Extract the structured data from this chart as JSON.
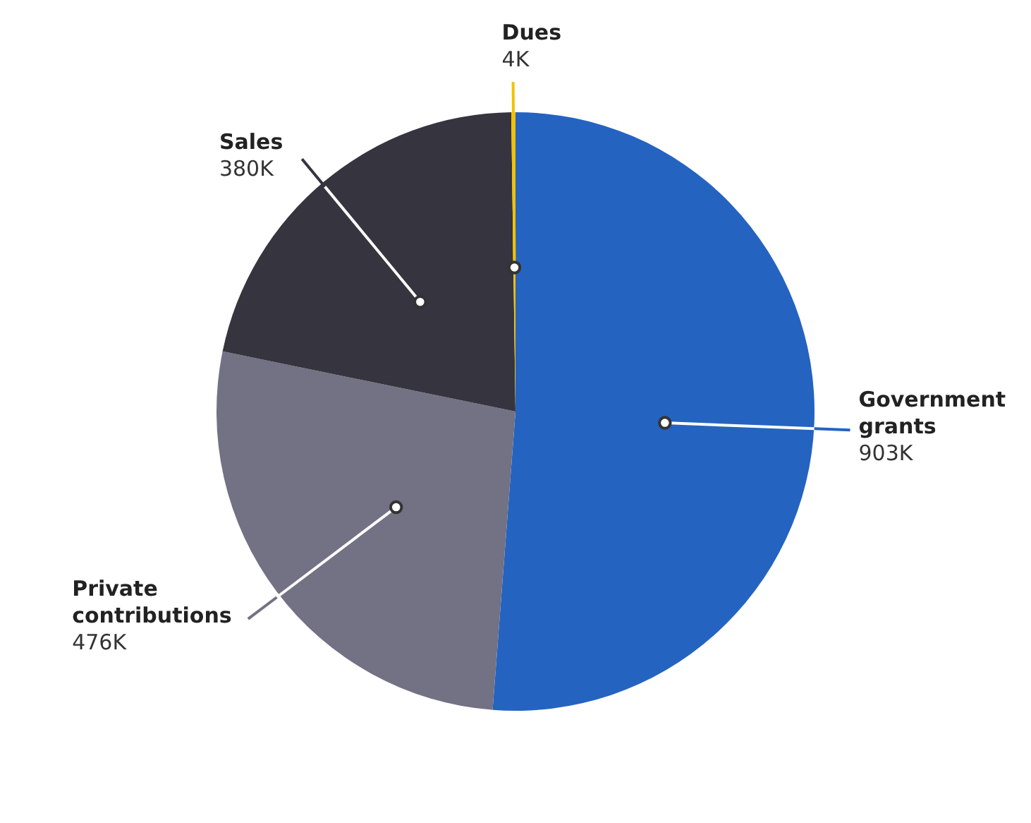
{
  "chart_data": {
    "type": "pie",
    "categories": [
      "Government grants",
      "Private contributions",
      "Sales",
      "Dues"
    ],
    "values": [
      903,
      476,
      380,
      4
    ],
    "value_labels": [
      "903K",
      "476K",
      "380K",
      "4K"
    ],
    "colors": [
      "#2563c0",
      "#737184",
      "#35343f",
      "#f2c200"
    ]
  }
}
